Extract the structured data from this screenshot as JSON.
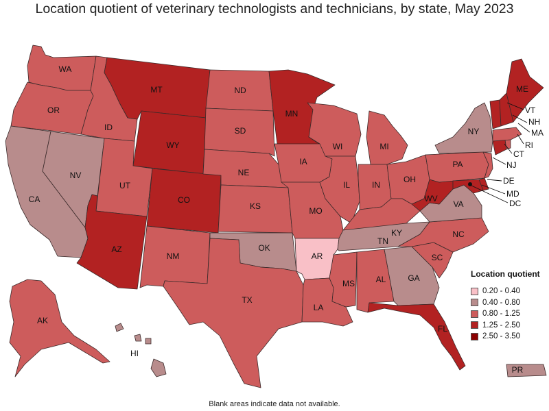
{
  "title": "Location quotient of veterinary technologists and technicians, by state, May 2023",
  "footnote": "Blank areas indicate data not available.",
  "legend": {
    "title": "Location quotient",
    "items": [
      {
        "label": "0.20 - 0.40",
        "color": "#f9c0c7"
      },
      {
        "label": "0.40 - 0.80",
        "color": "#b88c8c"
      },
      {
        "label": "0.80 - 1.25",
        "color": "#cd5c5c"
      },
      {
        "label": "1.25 - 2.50",
        "color": "#b22222"
      },
      {
        "label": "2.50 - 3.50",
        "color": "#8b0000"
      }
    ]
  },
  "states": [
    {
      "abbr": "WA",
      "cls": 2
    },
    {
      "abbr": "OR",
      "cls": 2
    },
    {
      "abbr": "CA",
      "cls": 1
    },
    {
      "abbr": "NV",
      "cls": 1
    },
    {
      "abbr": "ID",
      "cls": 2
    },
    {
      "abbr": "MT",
      "cls": 3
    },
    {
      "abbr": "WY",
      "cls": 3
    },
    {
      "abbr": "UT",
      "cls": 2
    },
    {
      "abbr": "AZ",
      "cls": 3
    },
    {
      "abbr": "CO",
      "cls": 3
    },
    {
      "abbr": "NM",
      "cls": 2
    },
    {
      "abbr": "ND",
      "cls": 2
    },
    {
      "abbr": "SD",
      "cls": 2
    },
    {
      "abbr": "NE",
      "cls": 2
    },
    {
      "abbr": "KS",
      "cls": 2
    },
    {
      "abbr": "OK",
      "cls": 1
    },
    {
      "abbr": "TX",
      "cls": 2
    },
    {
      "abbr": "MN",
      "cls": 3
    },
    {
      "abbr": "IA",
      "cls": 2
    },
    {
      "abbr": "MO",
      "cls": 2
    },
    {
      "abbr": "AR",
      "cls": 0
    },
    {
      "abbr": "LA",
      "cls": 2
    },
    {
      "abbr": "WI",
      "cls": 2
    },
    {
      "abbr": "IL",
      "cls": 2
    },
    {
      "abbr": "MI",
      "cls": 2
    },
    {
      "abbr": "IN",
      "cls": 2
    },
    {
      "abbr": "OH",
      "cls": 2
    },
    {
      "abbr": "KY",
      "cls": 2
    },
    {
      "abbr": "TN",
      "cls": 1
    },
    {
      "abbr": "MS",
      "cls": 2
    },
    {
      "abbr": "AL",
      "cls": 2
    },
    {
      "abbr": "GA",
      "cls": 1
    },
    {
      "abbr": "FL",
      "cls": 3
    },
    {
      "abbr": "SC",
      "cls": 2
    },
    {
      "abbr": "NC",
      "cls": 2
    },
    {
      "abbr": "VA",
      "cls": 1
    },
    {
      "abbr": "WV",
      "cls": 3
    },
    {
      "abbr": "PA",
      "cls": 2
    },
    {
      "abbr": "NY",
      "cls": 1
    },
    {
      "abbr": "NJ",
      "cls": 2
    },
    {
      "abbr": "DE",
      "cls": 3
    },
    {
      "abbr": "MD",
      "cls": 3
    },
    {
      "abbr": "DC",
      "cls": 4
    },
    {
      "abbr": "CT",
      "cls": 3
    },
    {
      "abbr": "RI",
      "cls": 2
    },
    {
      "abbr": "MA",
      "cls": 2
    },
    {
      "abbr": "VT",
      "cls": 3
    },
    {
      "abbr": "NH",
      "cls": 3
    },
    {
      "abbr": "ME",
      "cls": 3
    },
    {
      "abbr": "AK",
      "cls": 2
    },
    {
      "abbr": "HI",
      "cls": 1
    },
    {
      "abbr": "PR",
      "cls": 1
    }
  ]
}
